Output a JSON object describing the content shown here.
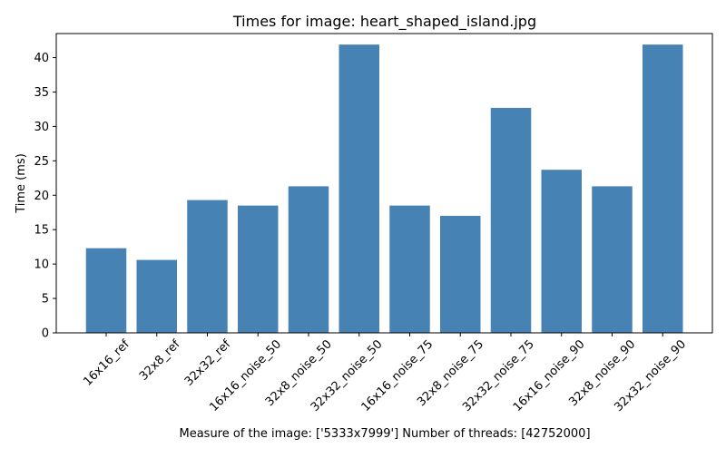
{
  "chart_data": {
    "type": "bar",
    "title": "Times for image: heart_shaped_island.jpg",
    "xlabel": "Measure of the image: ['5333x7999'] Number of threads: [42752000]",
    "ylabel": "Time (ms)",
    "ylim": [
      0,
      43.5
    ],
    "yticks": [
      0,
      5,
      10,
      15,
      20,
      25,
      30,
      35,
      40
    ],
    "grid": false,
    "bar_color": "#4682b4",
    "categories": [
      "16x16_ref",
      "32x8_ref",
      "32x32_ref",
      "16x16_noise_50",
      "32x8_noise_50",
      "32x32_noise_50",
      "16x16_noise_75",
      "32x8_noise_75",
      "32x32_noise_75",
      "16x16_noise_90",
      "32x8_noise_90",
      "32x32_noise_90"
    ],
    "values": [
      12.3,
      10.6,
      19.3,
      18.5,
      21.3,
      41.9,
      18.5,
      17.0,
      32.7,
      23.7,
      21.3,
      41.9
    ]
  }
}
